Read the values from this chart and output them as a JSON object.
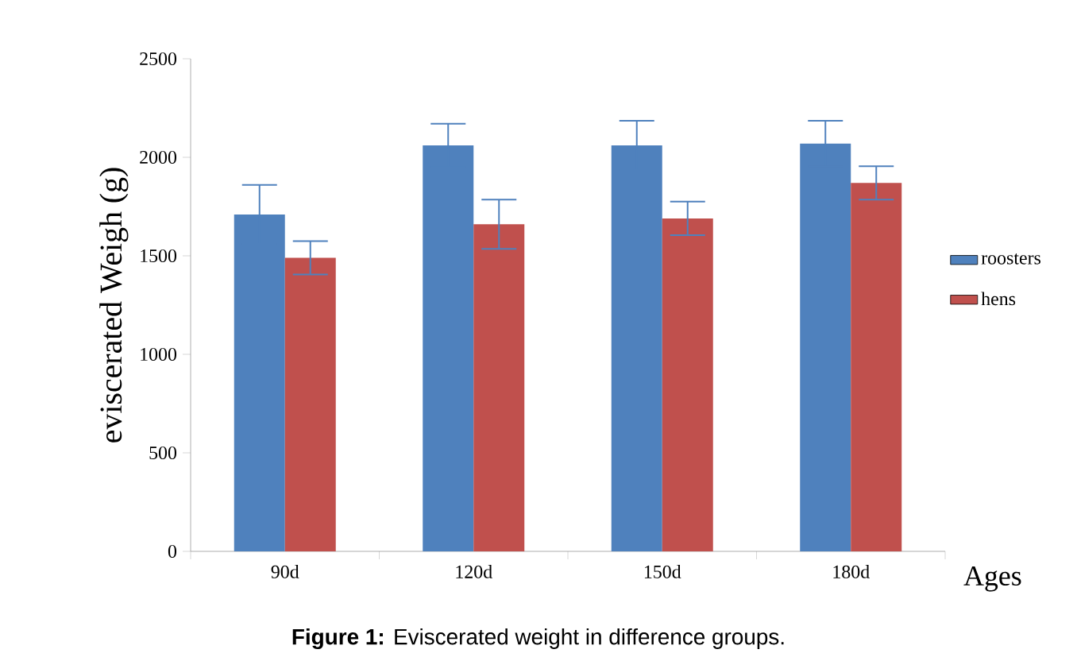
{
  "chart_data": {
    "type": "bar",
    "categories": [
      "90d",
      "120d",
      "150d",
      "180d"
    ],
    "series": [
      {
        "name": "roosters",
        "color": "#4f81bd",
        "values": [
          1710,
          2060,
          2060,
          2070
        ],
        "errors": [
          150,
          110,
          125,
          115
        ]
      },
      {
        "name": "hens",
        "color": "#c0504d",
        "values": [
          1490,
          1660,
          1690,
          1870
        ],
        "errors": [
          85,
          125,
          85,
          85
        ]
      }
    ],
    "xlabel": "Ages",
    "ylabel": "eviscerated Weigh (g)",
    "ylim": [
      0,
      2500
    ],
    "yticks": [
      0,
      500,
      1000,
      1500,
      2000,
      2500
    ],
    "legend": "right",
    "grid": false,
    "annotations": [
      "**Figure 1:** Eviscerated weight in difference groups."
    ]
  }
}
